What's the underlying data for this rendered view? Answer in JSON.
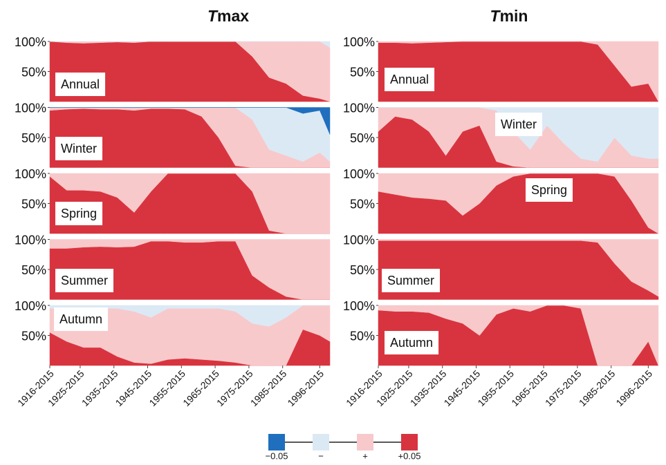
{
  "figure": {
    "titles": [
      "Tmax",
      "Tmin"
    ],
    "legend": [
      {
        "label": "−0.05",
        "color": "#1f6fbe"
      },
      {
        "label": "−",
        "color": "#dbe9f5"
      },
      {
        "label": "+",
        "color": "#f8c9cb"
      },
      {
        "label": "+0.05",
        "color": "#d8343f"
      }
    ]
  },
  "chart_data": [
    {
      "type": "area",
      "title": "Annual",
      "stacked": true,
      "x": [
        1916,
        1921,
        1926,
        1931,
        1936,
        1941,
        1946,
        1951,
        1956,
        1961,
        1966,
        1971,
        1976,
        1981,
        1986,
        1991,
        1996,
        1999
      ],
      "xlim": [
        1916,
        1999
      ],
      "ylim": [
        0,
        100
      ],
      "yticks": [
        {
          "value": 100,
          "label": "100%"
        },
        {
          "value": 50,
          "label": "50%"
        }
      ],
      "series": [
        {
          "color": "#d8343f",
          "values": [
            100,
            98,
            97,
            98,
            99,
            98,
            100,
            100,
            100,
            100,
            100,
            100,
            75,
            40,
            30,
            10,
            5,
            0
          ]
        },
        {
          "color": "#f8c9cb",
          "values": [
            0,
            2,
            3,
            2,
            1,
            2,
            0,
            0,
            0,
            0,
            0,
            0,
            25,
            60,
            70,
            90,
            95,
            90
          ]
        },
        {
          "color": "#dbe9f5",
          "values": [
            0,
            0,
            0,
            0,
            0,
            0,
            0,
            0,
            0,
            0,
            0,
            0,
            0,
            0,
            0,
            0,
            0,
            10
          ]
        }
      ]
    },
    {
      "type": "area",
      "title": "Winter",
      "stacked": true,
      "x": [
        1916,
        1921,
        1926,
        1931,
        1936,
        1941,
        1946,
        1951,
        1956,
        1961,
        1966,
        1971,
        1976,
        1981,
        1986,
        1991,
        1996,
        1999
      ],
      "xlim": [
        1916,
        1999
      ],
      "ylim": [
        0,
        100
      ],
      "yticks": [
        {
          "value": 100,
          "label": "100%"
        },
        {
          "value": 50,
          "label": "50%"
        }
      ],
      "series": [
        {
          "color": "#d8343f",
          "values": [
            95,
            97,
            98,
            97,
            97,
            95,
            98,
            98,
            97,
            85,
            50,
            3,
            0,
            0,
            0,
            0,
            0,
            0
          ]
        },
        {
          "color": "#f8c9cb",
          "values": [
            5,
            3,
            2,
            3,
            3,
            5,
            2,
            2,
            3,
            15,
            50,
            97,
            80,
            30,
            20,
            10,
            25,
            10
          ]
        },
        {
          "color": "#dbe9f5",
          "values": [
            0,
            0,
            0,
            0,
            0,
            0,
            0,
            0,
            0,
            0,
            0,
            0,
            20,
            70,
            80,
            80,
            70,
            45
          ]
        },
        {
          "color": "#1f6fbe",
          "values": [
            0,
            0,
            0,
            0,
            0,
            0,
            0,
            0,
            0,
            0,
            0,
            0,
            0,
            0,
            0,
            10,
            5,
            45
          ]
        }
      ]
    },
    {
      "type": "area",
      "title": "Spring",
      "stacked": true,
      "x": [
        1916,
        1921,
        1926,
        1931,
        1936,
        1941,
        1946,
        1951,
        1956,
        1961,
        1966,
        1971,
        1976,
        1981,
        1986,
        1991,
        1996,
        1999
      ],
      "xlim": [
        1916,
        1999
      ],
      "ylim": [
        0,
        100
      ],
      "yticks": [
        {
          "value": 100,
          "label": "100%"
        },
        {
          "value": 50,
          "label": "50%"
        }
      ],
      "series": [
        {
          "color": "#d8343f",
          "values": [
            95,
            72,
            72,
            70,
            60,
            35,
            70,
            100,
            100,
            100,
            100,
            100,
            70,
            5,
            0,
            0,
            0,
            0
          ]
        },
        {
          "color": "#f8c9cb",
          "values": [
            5,
            28,
            28,
            30,
            40,
            65,
            30,
            0,
            0,
            0,
            0,
            0,
            30,
            95,
            100,
            100,
            100,
            100
          ]
        }
      ]
    },
    {
      "type": "area",
      "title": "Summer",
      "stacked": true,
      "x": [
        1916,
        1921,
        1926,
        1931,
        1936,
        1941,
        1946,
        1951,
        1956,
        1961,
        1966,
        1971,
        1976,
        1981,
        1986,
        1991,
        1996,
        1999
      ],
      "xlim": [
        1916,
        1999
      ],
      "ylim": [
        0,
        100
      ],
      "yticks": [
        {
          "value": 100,
          "label": "100%"
        },
        {
          "value": 50,
          "label": "50%"
        }
      ],
      "series": [
        {
          "color": "#d8343f",
          "values": [
            85,
            85,
            87,
            88,
            87,
            88,
            97,
            97,
            95,
            95,
            97,
            97,
            40,
            20,
            5,
            0,
            0,
            0
          ]
        },
        {
          "color": "#f8c9cb",
          "values": [
            15,
            15,
            13,
            12,
            13,
            12,
            3,
            3,
            5,
            5,
            3,
            3,
            60,
            80,
            95,
            100,
            100,
            100
          ]
        }
      ]
    },
    {
      "type": "area",
      "title": "Autumn",
      "stacked": true,
      "x": [
        1916,
        1921,
        1926,
        1931,
        1936,
        1941,
        1946,
        1951,
        1956,
        1961,
        1966,
        1971,
        1976,
        1981,
        1986,
        1991,
        1996,
        1999
      ],
      "xlim": [
        1916,
        1999
      ],
      "ylim": [
        0,
        100
      ],
      "yticks": [
        {
          "value": 100,
          "label": "100%"
        },
        {
          "value": 50,
          "label": "50%"
        }
      ],
      "xticks": [
        {
          "value": 1916,
          "label": "1916-2015"
        },
        {
          "value": 1925,
          "label": "1925-2015"
        },
        {
          "value": 1935,
          "label": "1935-2015"
        },
        {
          "value": 1945,
          "label": "1945-2015"
        },
        {
          "value": 1955,
          "label": "1955-2015"
        },
        {
          "value": 1965,
          "label": "1965-2015"
        },
        {
          "value": 1975,
          "label": "1975-2015"
        },
        {
          "value": 1985,
          "label": "1985-2015"
        },
        {
          "value": 1996,
          "label": "1996-2015"
        }
      ],
      "series": [
        {
          "color": "#d8343f",
          "values": [
            55,
            40,
            30,
            30,
            15,
            5,
            3,
            10,
            12,
            10,
            8,
            5,
            0,
            0,
            0,
            60,
            50,
            40
          ]
        },
        {
          "color": "#f8c9cb",
          "values": [
            40,
            55,
            65,
            65,
            80,
            85,
            77,
            85,
            83,
            85,
            87,
            85,
            70,
            65,
            80,
            40,
            50,
            60
          ]
        },
        {
          "color": "#dbe9f5",
          "values": [
            5,
            5,
            5,
            5,
            5,
            10,
            20,
            5,
            5,
            5,
            5,
            10,
            30,
            35,
            20,
            0,
            0,
            0
          ]
        }
      ]
    },
    {
      "type": "area",
      "title": "Annual",
      "stacked": true,
      "x": [
        1916,
        1921,
        1926,
        1931,
        1936,
        1941,
        1946,
        1951,
        1956,
        1961,
        1966,
        1971,
        1976,
        1981,
        1986,
        1991,
        1996,
        1999
      ],
      "xlim": [
        1916,
        1999
      ],
      "ylim": [
        0,
        100
      ],
      "yticks": [
        {
          "value": 100,
          "label": "100%"
        },
        {
          "value": 50,
          "label": "50%"
        }
      ],
      "series": [
        {
          "color": "#d8343f",
          "values": [
            98,
            98,
            97,
            98,
            99,
            100,
            100,
            100,
            100,
            100,
            100,
            100,
            100,
            95,
            60,
            25,
            30,
            0
          ]
        },
        {
          "color": "#f8c9cb",
          "values": [
            2,
            2,
            3,
            2,
            1,
            0,
            0,
            0,
            0,
            0,
            0,
            0,
            0,
            5,
            40,
            75,
            70,
            100
          ]
        }
      ]
    },
    {
      "type": "area",
      "title": "Winter",
      "stacked": true,
      "x": [
        1916,
        1921,
        1926,
        1931,
        1936,
        1941,
        1946,
        1951,
        1956,
        1961,
        1966,
        1971,
        1976,
        1981,
        1986,
        1991,
        1996,
        1999
      ],
      "xlim": [
        1916,
        1999
      ],
      "ylim": [
        0,
        100
      ],
      "yticks": [
        {
          "value": 100,
          "label": "100%"
        },
        {
          "value": 50,
          "label": "50%"
        }
      ],
      "series": [
        {
          "color": "#d8343f",
          "values": [
            60,
            85,
            80,
            60,
            20,
            60,
            70,
            10,
            2,
            0,
            0,
            0,
            0,
            0,
            0,
            0,
            0,
            0
          ]
        },
        {
          "color": "#f8c9cb",
          "values": [
            40,
            15,
            20,
            40,
            80,
            40,
            30,
            85,
            58,
            30,
            70,
            40,
            15,
            10,
            50,
            20,
            15,
            15
          ]
        },
        {
          "color": "#dbe9f5",
          "values": [
            0,
            0,
            0,
            0,
            0,
            0,
            0,
            5,
            40,
            70,
            30,
            60,
            85,
            90,
            50,
            80,
            85,
            85
          ]
        }
      ]
    },
    {
      "type": "area",
      "title": "Spring",
      "stacked": true,
      "x": [
        1916,
        1921,
        1926,
        1931,
        1936,
        1941,
        1946,
        1951,
        1956,
        1961,
        1966,
        1971,
        1976,
        1981,
        1986,
        1991,
        1996,
        1999
      ],
      "xlim": [
        1916,
        1999
      ],
      "ylim": [
        0,
        100
      ],
      "yticks": [
        {
          "value": 100,
          "label": "100%"
        },
        {
          "value": 50,
          "label": "50%"
        }
      ],
      "series": [
        {
          "color": "#d8343f",
          "values": [
            70,
            65,
            60,
            58,
            55,
            30,
            50,
            80,
            95,
            100,
            100,
            100,
            100,
            100,
            95,
            55,
            10,
            0
          ]
        },
        {
          "color": "#f8c9cb",
          "values": [
            30,
            35,
            40,
            42,
            45,
            70,
            50,
            20,
            5,
            0,
            0,
            0,
            0,
            0,
            5,
            45,
            90,
            100
          ]
        }
      ]
    },
    {
      "type": "area",
      "title": "Summer",
      "stacked": true,
      "x": [
        1916,
        1921,
        1926,
        1931,
        1936,
        1941,
        1946,
        1951,
        1956,
        1961,
        1966,
        1971,
        1976,
        1981,
        1986,
        1991,
        1996,
        1999
      ],
      "xlim": [
        1916,
        1999
      ],
      "ylim": [
        0,
        100
      ],
      "yticks": [
        {
          "value": 100,
          "label": "100%"
        },
        {
          "value": 50,
          "label": "50%"
        }
      ],
      "series": [
        {
          "color": "#d8343f",
          "values": [
            98,
            98,
            98,
            98,
            98,
            98,
            98,
            98,
            98,
            98,
            98,
            98,
            98,
            95,
            60,
            30,
            15,
            5
          ]
        },
        {
          "color": "#f8c9cb",
          "values": [
            2,
            2,
            2,
            2,
            2,
            2,
            2,
            2,
            2,
            2,
            2,
            2,
            2,
            5,
            40,
            70,
            85,
            95
          ]
        }
      ]
    },
    {
      "type": "area",
      "title": "Autumn",
      "stacked": true,
      "x": [
        1916,
        1921,
        1926,
        1931,
        1936,
        1941,
        1946,
        1951,
        1956,
        1961,
        1966,
        1971,
        1976,
        1981,
        1986,
        1991,
        1996,
        1999
      ],
      "xlim": [
        1916,
        1999
      ],
      "ylim": [
        0,
        100
      ],
      "yticks": [
        {
          "value": 100,
          "label": "100%"
        },
        {
          "value": 50,
          "label": "50%"
        }
      ],
      "xticks": [
        {
          "value": 1916,
          "label": "1916-2015"
        },
        {
          "value": 1925,
          "label": "1925-2015"
        },
        {
          "value": 1935,
          "label": "1935-2015"
        },
        {
          "value": 1945,
          "label": "1945-2015"
        },
        {
          "value": 1955,
          "label": "1955-2015"
        },
        {
          "value": 1965,
          "label": "1965-2015"
        },
        {
          "value": 1975,
          "label": "1975-2015"
        },
        {
          "value": 1985,
          "label": "1985-2015"
        },
        {
          "value": 1996,
          "label": "1996-2015"
        }
      ],
      "series": [
        {
          "color": "#d8343f",
          "values": [
            92,
            90,
            90,
            88,
            78,
            70,
            50,
            85,
            95,
            90,
            100,
            100,
            95,
            0,
            0,
            0,
            40,
            0
          ]
        },
        {
          "color": "#f8c9cb",
          "values": [
            8,
            10,
            10,
            12,
            22,
            30,
            50,
            15,
            5,
            10,
            0,
            0,
            5,
            100,
            100,
            100,
            60,
            100
          ]
        }
      ]
    }
  ]
}
